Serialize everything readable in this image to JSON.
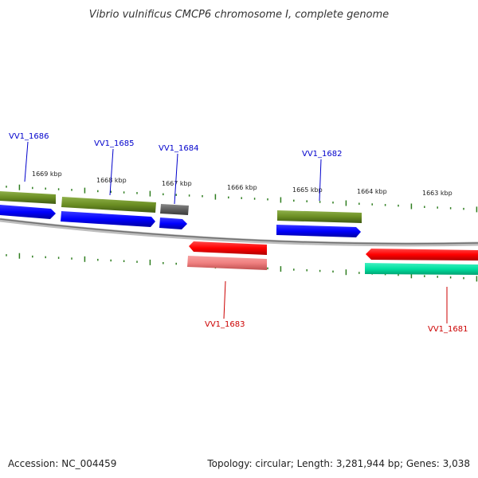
{
  "title": "Vibrio vulnificus CMCP6 chromosome I, complete genome",
  "footer": {
    "accession": "Accession: NC_004459",
    "summary": "Topology: circular; Length: 3,281,944 bp; Genes: 3,038"
  },
  "colors": {
    "backbone": "#8a8a8a",
    "tick": "#2e7d1f",
    "forward_label": "#0000cc",
    "reverse_label": "#cc0000",
    "olive": "#6b8e23",
    "blue": "#0000ff",
    "gray": "#5f5f5f",
    "red": "#ff0000",
    "pink": "#f08080",
    "teal": "#00e0a0"
  },
  "kbp_labels": [
    "1669 kbp",
    "1668 kbp",
    "1667 kbp",
    "1666 kbp",
    "1665 kbp",
    "1664 kbp",
    "1663 kbp"
  ],
  "gene_labels_forward": [
    "VV1_1686",
    "VV1_1685",
    "VV1_1684",
    "VV1_1682"
  ],
  "gene_labels_reverse": [
    "VV1_1683",
    "VV1_1681"
  ]
}
